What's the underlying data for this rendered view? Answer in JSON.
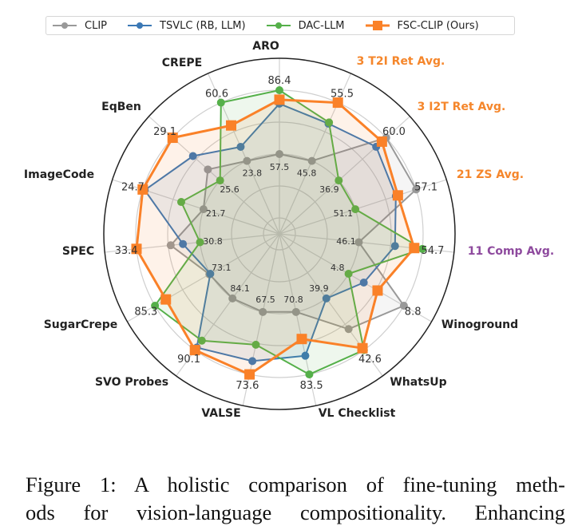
{
  "chart_data": {
    "type": "radar",
    "axes": [
      {
        "label": "ARO",
        "color": "#222222",
        "min_label": "57.5",
        "max_label": "86.4"
      },
      {
        "label": "3 T2I Ret Avg.",
        "color": "#f5862b",
        "min_label": "45.8",
        "max_label": "55.5"
      },
      {
        "label": "3 I2T Ret Avg.",
        "color": "#f5862b",
        "min_label": "36.9",
        "max_label": "60.0"
      },
      {
        "label": "21 ZS Avg.",
        "color": "#f5862b",
        "min_label": "51.1",
        "max_label": "57.1"
      },
      {
        "label": "11 Comp Avg.",
        "color": "#8e4a9e",
        "min_label": "46.1",
        "max_label": "54.7"
      },
      {
        "label": "Winoground",
        "color": "#222222",
        "min_label": "4.8",
        "max_label": "8.8"
      },
      {
        "label": "WhatsUp",
        "color": "#222222",
        "min_label": "39.9",
        "max_label": "42.6"
      },
      {
        "label": "VL Checklist",
        "color": "#222222",
        "min_label": "70.8",
        "max_label": "83.5"
      },
      {
        "label": "VALSE",
        "color": "#222222",
        "min_label": "67.5",
        "max_label": "73.6"
      },
      {
        "label": "SVO Probes",
        "color": "#222222",
        "min_label": "84.1",
        "max_label": "90.1"
      },
      {
        "label": "SugarCrepe",
        "color": "#222222",
        "min_label": "73.1",
        "max_label": "85.3"
      },
      {
        "label": "SPEC",
        "color": "#222222",
        "min_label": "30.8",
        "max_label": "33.4"
      },
      {
        "label": "ImageCode",
        "color": "#222222",
        "min_label": "21.7",
        "max_label": "24.7"
      },
      {
        "label": "EqBen",
        "color": "#222222",
        "min_label": "25.6",
        "max_label": "29.1"
      },
      {
        "label": "CREPE",
        "color": "#222222",
        "min_label": "23.8",
        "max_label": "60.6"
      }
    ],
    "series": [
      {
        "name": "CLIP",
        "color": "#999999",
        "marker": "circle",
        "values": [
          57.5,
          45.8,
          60.0,
          57.1,
          46.1,
          8.8,
          41.5,
          70.8,
          67.5,
          84.1,
          73.3,
          32.0,
          21.7,
          26.5,
          23.8
        ]
      },
      {
        "name": "TSVLC (RB, LLM)",
        "color": "#3b78b5",
        "marker": "circle",
        "values": [
          80.3,
          52.0,
          55.1,
          55.1,
          51.0,
          5.9,
          39.9,
          79.7,
          72.3,
          89.8,
          73.1,
          31.5,
          24.6,
          27.6,
          32.7
        ]
      },
      {
        "name": "DAC-LLM",
        "color": "#55b04a",
        "marker": "circle",
        "values": [
          86.4,
          52.2,
          36.9,
          51.1,
          54.7,
          4.8,
          42.6,
          83.5,
          70.7,
          89.0,
          85.3,
          30.8,
          22.8,
          25.6,
          60.6
        ]
      },
      {
        "name": "FSC-CLIP (Ours)",
        "color": "#fa8128",
        "marker": "square",
        "values": [
          82.1,
          55.5,
          57.9,
          55.3,
          53.6,
          6.9,
          42.5,
          76.3,
          73.6,
          90.1,
          82.9,
          33.4,
          24.7,
          29.1,
          46.2
        ]
      }
    ],
    "scale": "per-axis min-max normalized",
    "grid": true,
    "legend": "top"
  },
  "caption": {
    "lines": [
      "Figure 1: A holistic comparison of fine-tuning meth-",
      "ods for vision-language compositionality. Enhancing"
    ]
  }
}
